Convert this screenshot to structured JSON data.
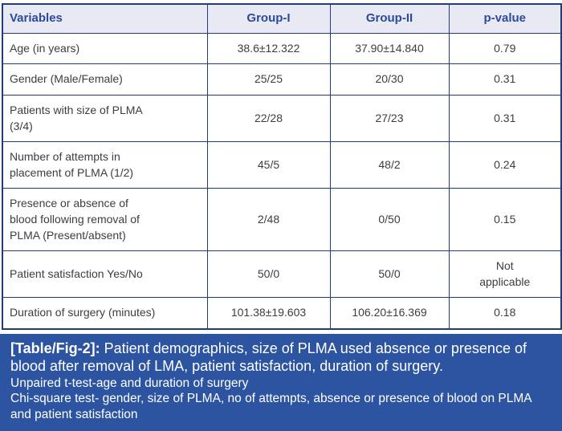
{
  "table": {
    "columns": [
      {
        "label": "Variables"
      },
      {
        "label": "Group-I"
      },
      {
        "label": "Group-II"
      },
      {
        "label": "p-value"
      }
    ],
    "rows": [
      {
        "variable": "Age (in years)",
        "group1": "38.6±12.322",
        "group2": "37.90±14.840",
        "p_value": "0.79"
      },
      {
        "variable": "Gender (Male/Female)",
        "group1": "25/25",
        "group2": "20/30",
        "p_value": "0.31"
      },
      {
        "variable": "Patients with size of PLMA (3/4)",
        "group1": "22/28",
        "group2": "27/23",
        "p_value": "0.31"
      },
      {
        "variable": "Number of attempts in placement of PLMA (1/2)",
        "group1": "45/5",
        "group2": "48/2",
        "p_value": "0.24"
      },
      {
        "variable": "Presence or absence of blood following removal of PLMA (Present/absent)",
        "group1": "2/48",
        "group2": "0/50",
        "p_value": "0.15"
      },
      {
        "variable": "Patient satisfaction Yes/No",
        "group1": "50/0",
        "group2": "50/0",
        "p_value": "Not applicable"
      },
      {
        "variable": "Duration of surgery (minutes)",
        "group1": "101.38±19.603",
        "group2": "106.20±16.369",
        "p_value": "0.18"
      }
    ]
  },
  "caption": {
    "label": "[Table/Fig-2]:",
    "text": "Patient demographics, size of PLMA used absence or presence of blood after removal of LMA, patient satisfaction, duration of surgery.",
    "notes": [
      "Unpaired t-test-age and duration of surgery",
      "Chi-square test- gender, size of PLMA, no of attempts, absence or presence of blood on PLMA and patient satisfaction"
    ]
  },
  "colors": {
    "header_bg": "#e9e9f4",
    "header_text": "#2b4a9c",
    "border": "#1e3d79",
    "body_text": "#3d3d3d",
    "footer_bg": "#2d54a1",
    "footer_text": "#ffffff"
  }
}
